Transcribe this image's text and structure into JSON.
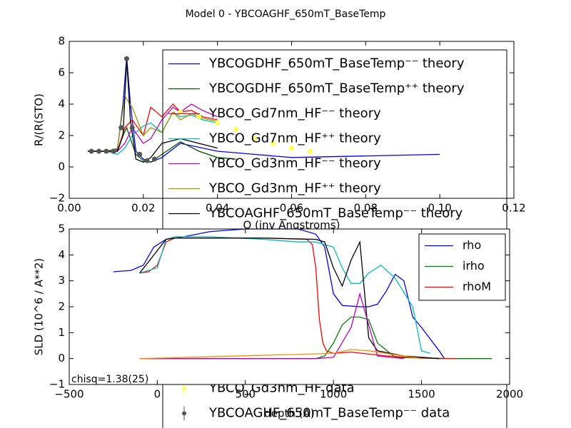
{
  "chart_data": [
    {
      "type": "line",
      "title": "Model 0 - YBCOAGHF_650mT_BaseTemp",
      "xlabel": "Q (inv Angstroms)",
      "ylabel": "R/(R(STO)",
      "xlim": [
        0,
        0.12
      ],
      "ylim": [
        -2,
        8
      ],
      "xticks": [
        {
          "value": 0,
          "label": "0.00"
        },
        {
          "value": 0.02,
          "label": "0.02"
        },
        {
          "value": 0.04,
          "label": "0.04"
        },
        {
          "value": 0.06,
          "label": "0.06"
        },
        {
          "value": 0.08,
          "label": "0.08"
        },
        {
          "value": 0.1,
          "label": "0.10"
        },
        {
          "value": 0.12,
          "label": "0.12"
        }
      ],
      "yticks": [
        {
          "value": -2,
          "label": "−2"
        },
        0,
        2,
        4,
        6,
        8
      ],
      "grid": false,
      "legend": "upper right",
      "series": [
        {
          "name": "YBCOGDHF_650mT_BaseTemp⁻⁻ theory",
          "color": "#0000ff",
          "style": "line",
          "x": [
            0.005,
            0.01,
            0.013,
            0.0145,
            0.0155,
            0.0165,
            0.018,
            0.02,
            0.022,
            0.025,
            0.03,
            0.04,
            0.05,
            0.06,
            0.08,
            0.1
          ],
          "values": [
            1,
            1,
            1.1,
            4,
            7,
            4,
            1,
            0.5,
            0.3,
            0.6,
            1.5,
            1,
            0.8,
            0.6,
            0.7,
            0.8
          ]
        },
        {
          "name": "YBCOGDHF_650mT_BaseTemp⁺⁺ theory",
          "color": "#005500",
          "style": "line",
          "x": [
            0.005,
            0.01,
            0.013,
            0.0145,
            0.0155,
            0.0165,
            0.018,
            0.02,
            0.022,
            0.025,
            0.03,
            0.035,
            0.04,
            0.045
          ],
          "values": [
            1,
            1,
            1,
            2,
            2.5,
            1.8,
            0.8,
            0.4,
            0.3,
            0.8,
            1.6,
            1,
            0.6,
            0.5
          ]
        },
        {
          "name": "YBCO_Gd7nm_HF⁻⁻ theory",
          "color": "#ff0000",
          "style": "line",
          "x": [
            0.005,
            0.01,
            0.013,
            0.015,
            0.017,
            0.02,
            0.022,
            0.025,
            0.028,
            0.03,
            0.033,
            0.036,
            0.04
          ],
          "values": [
            1,
            1,
            1,
            2.5,
            3,
            2,
            3.8,
            3.2,
            4,
            3.5,
            3.6,
            3.2,
            3
          ]
        },
        {
          "name": "YBCO_Gd7nm_HF⁺⁺ theory",
          "color": "#00bfbf",
          "style": "line",
          "x": [
            0.005,
            0.01,
            0.013,
            0.015,
            0.017,
            0.02,
            0.022,
            0.025,
            0.028,
            0.03,
            0.033,
            0.036,
            0.04
          ],
          "values": [
            1,
            1,
            0.8,
            1.2,
            2,
            2.6,
            2.8,
            2.2,
            3.5,
            3.2,
            3.3,
            3,
            2.8
          ]
        },
        {
          "name": "YBCO_Gd3nm_HF⁻⁻ theory",
          "color": "#bf00bf",
          "style": "line",
          "x": [
            0.005,
            0.01,
            0.013,
            0.015,
            0.017,
            0.02,
            0.022,
            0.025,
            0.028,
            0.03,
            0.033,
            0.036,
            0.04
          ],
          "values": [
            1,
            1,
            1,
            1.5,
            2.5,
            1.5,
            1.8,
            3,
            3.8,
            3.5,
            4,
            3.6,
            3.2
          ]
        },
        {
          "name": "YBCO_Gd3nm_HF⁺⁺ theory",
          "color": "#999900",
          "style": "line",
          "x": [
            0.005,
            0.01,
            0.013,
            0.015,
            0.017,
            0.02,
            0.022,
            0.025,
            0.028,
            0.03,
            0.033,
            0.036,
            0.04
          ],
          "values": [
            1,
            1,
            1.2,
            4.5,
            3.8,
            2,
            2.5,
            2.2,
            3.5,
            3,
            3.4,
            3.1,
            2.9
          ]
        },
        {
          "name": "YBCOAGHF_650mT_BaseTemp⁻⁻ theory",
          "color": "#000000",
          "style": "line",
          "x": [
            0.005,
            0.01,
            0.013,
            0.0145,
            0.0155,
            0.0165,
            0.018,
            0.02,
            0.022,
            0.025,
            0.03,
            0.035,
            0.04
          ],
          "values": [
            1,
            1,
            1,
            2,
            6.8,
            3,
            0.5,
            0.3,
            0.6,
            1.5,
            1.8,
            1.5,
            1.2
          ]
        },
        {
          "name": "YBCO_Gd3nm_HF data",
          "color": "#ffff55",
          "style": "points",
          "x": [
            0.03,
            0.035,
            0.04,
            0.045,
            0.05,
            0.055,
            0.06,
            0.065
          ],
          "values": [
            3.5,
            3.2,
            2.8,
            2.4,
            1.8,
            1.5,
            1.2,
            1.0
          ]
        },
        {
          "name": "YBCOAGHF_650mT_BaseTemp⁻⁻ data",
          "color": "#555555",
          "style": "points",
          "x": [
            0.006,
            0.008,
            0.01,
            0.012,
            0.014,
            0.0155,
            0.017,
            0.019,
            0.021,
            0.023
          ],
          "values": [
            1,
            1,
            1,
            1,
            2.5,
            6.9,
            2.5,
            0.8,
            0.4,
            0.5
          ]
        }
      ]
    },
    {
      "type": "line",
      "xlabel": "depth (A)",
      "ylabel": "SLD (10^6 / A**2)",
      "xlim": [
        -500,
        2000
      ],
      "ylim": [
        -1,
        5
      ],
      "xticks": [
        {
          "value": -500,
          "label": "−500"
        },
        0,
        500,
        1000,
        1500,
        2000
      ],
      "yticks": [
        {
          "value": -1,
          "label": "−1"
        },
        0,
        1,
        2,
        3,
        4,
        5
      ],
      "grid": false,
      "legend": "upper right",
      "annotation": "chisq=1.38(25)",
      "series": [
        {
          "name": "rho",
          "color": "#0000ff",
          "style": "line",
          "x": [
            -250,
            -150,
            -80,
            -20,
            50,
            150,
            300,
            500,
            800,
            900,
            950,
            1000,
            1050,
            1150,
            1200,
            1250,
            1300,
            1350,
            1400,
            1450,
            1500,
            1600,
            1630
          ],
          "values": [
            3.35,
            3.4,
            3.6,
            4.3,
            4.6,
            4.7,
            4.9,
            5.0,
            5.0,
            4.8,
            4.3,
            2.5,
            2.05,
            2.0,
            2.0,
            2.1,
            2.6,
            3.25,
            3.0,
            1.6,
            1.2,
            0.3,
            0
          ]
        },
        {
          "name": "irho",
          "color": "#008000",
          "style": "line",
          "x": [
            -100,
            500,
            900,
            950,
            1000,
            1050,
            1100,
            1150,
            1200,
            1250,
            1350,
            1600,
            1900
          ],
          "values": [
            0,
            0,
            0,
            0.1,
            0.6,
            1.3,
            1.6,
            1.6,
            1.5,
            0.6,
            0.05,
            0,
            0
          ]
        },
        {
          "name": "rhoM",
          "color": "#ff0000",
          "style": "line",
          "x": [
            -100,
            -50,
            0,
            50,
            100,
            300,
            600,
            850,
            880,
            900,
            920,
            940,
            960,
            1000,
            1100,
            1300,
            1500,
            1700
          ],
          "values": [
            3.3,
            3.35,
            3.6,
            4.5,
            4.65,
            4.65,
            4.65,
            4.6,
            4.4,
            3.5,
            1.5,
            0.6,
            0.3,
            0.2,
            0.25,
            0.1,
            0.02,
            0
          ]
        },
        {
          "color": "#00bfbf",
          "style": "line",
          "x": [
            -100,
            0,
            50,
            100,
            300,
            600,
            800,
            900,
            1000,
            1050,
            1100,
            1150,
            1200,
            1270,
            1350,
            1450,
            1500,
            1550
          ],
          "values": [
            3.3,
            3.5,
            4.6,
            4.7,
            4.7,
            4.6,
            4.5,
            4.5,
            4.3,
            3.5,
            2.9,
            2.9,
            3.3,
            3.6,
            3.1,
            2.0,
            0.3,
            0.2
          ]
        },
        {
          "color": "#000000",
          "style": "line",
          "x": [
            -100,
            50,
            100,
            600,
            900,
            950,
            1000,
            1050,
            1100,
            1150,
            1200,
            1250,
            1400,
            1600
          ],
          "values": [
            3.3,
            4.6,
            4.65,
            4.65,
            4.6,
            4.5,
            3.5,
            2.8,
            3.8,
            4.5,
            0.8,
            0.3,
            0.1,
            0
          ]
        },
        {
          "color": "#bf00bf",
          "style": "line",
          "x": [
            -100,
            900,
            1000,
            1100,
            1150,
            1200,
            1250,
            1400
          ],
          "values": [
            0,
            0,
            0.05,
            1.2,
            2.5,
            1.3,
            0.1,
            0
          ]
        },
        {
          "color": "#ff8c00",
          "style": "line",
          "x": [
            -100,
            1000,
            1100,
            1200,
            1500
          ],
          "values": [
            0,
            0.2,
            0.35,
            0.3,
            0
          ]
        }
      ]
    }
  ]
}
